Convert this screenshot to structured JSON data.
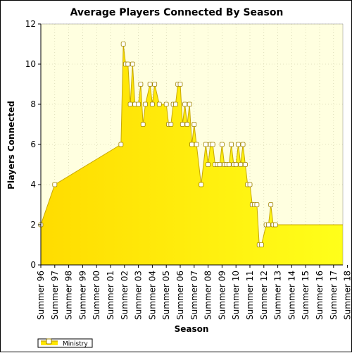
{
  "chart_data": {
    "type": "area",
    "title": "Average Players Connected By Season",
    "xlabel": "Season",
    "ylabel": "Players Connected",
    "ylim": [
      0,
      12
    ],
    "yticks": [
      0,
      2,
      4,
      6,
      8,
      10,
      12
    ],
    "x_range": [
      0,
      130
    ],
    "grid": true,
    "legend_position": "bottom-left",
    "colors": {
      "area_fill": "#ffe600",
      "line": "#c8a800",
      "plot_background": "#ffffe0",
      "marker_fill": "#ffffff",
      "grid": "#c8c8a0"
    },
    "x_ticks": [
      {
        "label": "Summer 96",
        "x": 0
      },
      {
        "label": "Summer 97",
        "x": 6
      },
      {
        "label": "Summer 98",
        "x": 12
      },
      {
        "label": "Summer 99",
        "x": 18
      },
      {
        "label": "Summer 00",
        "x": 24
      },
      {
        "label": "Summer 01",
        "x": 30
      },
      {
        "label": "Summer 02",
        "x": 36
      },
      {
        "label": "Summer 03",
        "x": 42
      },
      {
        "label": "Summer 04",
        "x": 48
      },
      {
        "label": "Summer 05",
        "x": 54
      },
      {
        "label": "Summer 06",
        "x": 60
      },
      {
        "label": "Summer 07",
        "x": 66
      },
      {
        "label": "Summer 08",
        "x": 72
      },
      {
        "label": "Summer 09",
        "x": 78
      },
      {
        "label": "Summer 10",
        "x": 84
      },
      {
        "label": "Summer 11",
        "x": 90
      },
      {
        "label": "Summer 12",
        "x": 96
      },
      {
        "label": "Summer 13",
        "x": 102
      },
      {
        "label": "Summer 14",
        "x": 108
      },
      {
        "label": "Summer 15",
        "x": 114
      },
      {
        "label": "Summer 16",
        "x": 120
      },
      {
        "label": "Summer 17",
        "x": 126
      },
      {
        "label": "Summer 18",
        "x": 132
      }
    ],
    "series": [
      {
        "name": "Ministry",
        "points": [
          {
            "x": 0,
            "y": 2
          },
          {
            "x": 6,
            "y": 4
          },
          {
            "x": 34.5,
            "y": 6
          },
          {
            "x": 35.5,
            "y": 11
          },
          {
            "x": 36.5,
            "y": 10
          },
          {
            "x": 37.5,
            "y": 10
          },
          {
            "x": 38.5,
            "y": 8
          },
          {
            "x": 39.5,
            "y": 10
          },
          {
            "x": 40.5,
            "y": 8
          },
          {
            "x": 42,
            "y": 8
          },
          {
            "x": 43,
            "y": 9
          },
          {
            "x": 44,
            "y": 7
          },
          {
            "x": 45,
            "y": 8
          },
          {
            "x": 47,
            "y": 9
          },
          {
            "x": 48,
            "y": 8
          },
          {
            "x": 49,
            "y": 9
          },
          {
            "x": 51,
            "y": 8
          },
          {
            "x": 54,
            "y": 8
          },
          {
            "x": 55,
            "y": 7
          },
          {
            "x": 56,
            "y": 7
          },
          {
            "x": 57,
            "y": 8
          },
          {
            "x": 58,
            "y": 8
          },
          {
            "x": 59,
            "y": 9
          },
          {
            "x": 60,
            "y": 9
          },
          {
            "x": 61,
            "y": 7
          },
          {
            "x": 62,
            "y": 8
          },
          {
            "x": 63,
            "y": 7
          },
          {
            "x": 64,
            "y": 8
          },
          {
            "x": 65,
            "y": 6
          },
          {
            "x": 66,
            "y": 7
          },
          {
            "x": 67,
            "y": 6
          },
          {
            "x": 69,
            "y": 4
          },
          {
            "x": 71,
            "y": 6
          },
          {
            "x": 72,
            "y": 5
          },
          {
            "x": 73,
            "y": 6
          },
          {
            "x": 74,
            "y": 6
          },
          {
            "x": 75,
            "y": 5
          },
          {
            "x": 76,
            "y": 5
          },
          {
            "x": 77,
            "y": 5
          },
          {
            "x": 78,
            "y": 6
          },
          {
            "x": 79,
            "y": 5
          },
          {
            "x": 80,
            "y": 5
          },
          {
            "x": 81,
            "y": 5
          },
          {
            "x": 82,
            "y": 6
          },
          {
            "x": 83,
            "y": 5
          },
          {
            "x": 84,
            "y": 5
          },
          {
            "x": 85,
            "y": 6
          },
          {
            "x": 86,
            "y": 5
          },
          {
            "x": 87,
            "y": 6
          },
          {
            "x": 88,
            "y": 5
          },
          {
            "x": 89,
            "y": 4
          },
          {
            "x": 90,
            "y": 4
          },
          {
            "x": 91,
            "y": 3
          },
          {
            "x": 92,
            "y": 3
          },
          {
            "x": 93,
            "y": 3
          },
          {
            "x": 94,
            "y": 1
          },
          {
            "x": 95,
            "y": 1
          },
          {
            "x": 97,
            "y": 2
          },
          {
            "x": 98,
            "y": 2
          },
          {
            "x": 99,
            "y": 3
          },
          {
            "x": 100,
            "y": 2
          },
          {
            "x": 101,
            "y": 2
          }
        ]
      }
    ]
  }
}
